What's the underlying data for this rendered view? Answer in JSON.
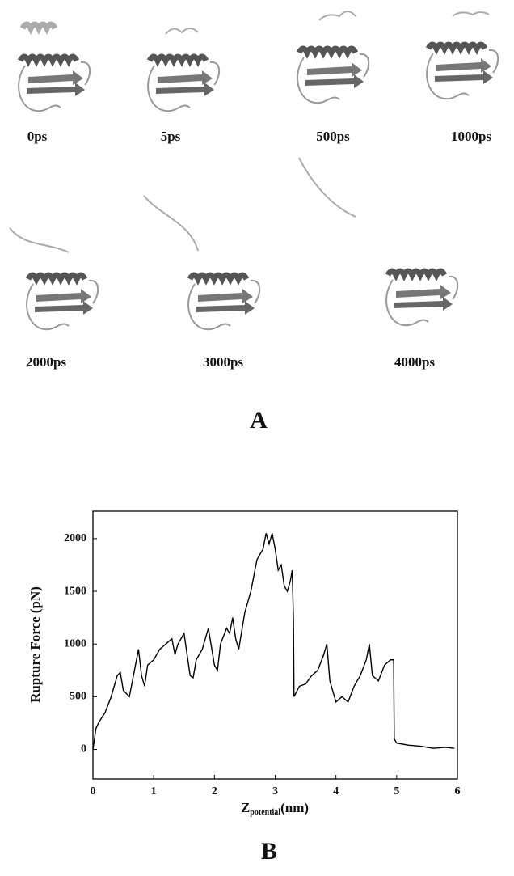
{
  "panel_a": {
    "labels": [
      "0ps",
      "5ps",
      "500ps",
      "1000ps",
      "2000ps",
      "3000ps",
      "4000ps"
    ],
    "panel_label": "A"
  },
  "panel_b": {
    "panel_label": "B"
  },
  "chart_data": {
    "type": "line",
    "y_label": "Rupture Force (pN)",
    "x_label": {
      "symbol": "Z",
      "subscript": "potential",
      "unit": "(nm)"
    },
    "xlim": [
      0,
      6
    ],
    "xticks": [
      0,
      1,
      2,
      3,
      4,
      5,
      6
    ],
    "ylim": [
      -280,
      2260
    ],
    "yticks": [
      0,
      500,
      1000,
      1500,
      2000
    ],
    "grid": false,
    "series": [
      {
        "name": null,
        "color": "#000000",
        "x": [
          0,
          0.05,
          0.1,
          0.2,
          0.3,
          0.4,
          0.45,
          0.5,
          0.6,
          0.7,
          0.75,
          0.8,
          0.85,
          0.9,
          1.0,
          1.1,
          1.2,
          1.3,
          1.35,
          1.4,
          1.5,
          1.6,
          1.65,
          1.7,
          1.8,
          1.9,
          2.0,
          2.05,
          2.1,
          2.2,
          2.25,
          2.3,
          2.35,
          2.4,
          2.5,
          2.6,
          2.7,
          2.8,
          2.85,
          2.9,
          2.95,
          3.0,
          3.05,
          3.1,
          3.15,
          3.2,
          3.25,
          3.28,
          3.3,
          3.31,
          3.4,
          3.5,
          3.6,
          3.7,
          3.8,
          3.85,
          3.9,
          4.0,
          4.1,
          4.2,
          4.3,
          4.4,
          4.5,
          4.55,
          4.6,
          4.7,
          4.8,
          4.9,
          4.95,
          4.96,
          5.0,
          5.2,
          5.4,
          5.6,
          5.8,
          5.95
        ],
        "values": [
          0,
          200,
          260,
          350,
          500,
          700,
          730,
          560,
          500,
          800,
          950,
          700,
          600,
          800,
          850,
          950,
          1000,
          1050,
          900,
          1000,
          1100,
          700,
          680,
          850,
          950,
          1150,
          800,
          750,
          1000,
          1150,
          1100,
          1250,
          1050,
          950,
          1300,
          1500,
          1800,
          1900,
          2050,
          1950,
          2050,
          1900,
          1700,
          1750,
          1550,
          1500,
          1600,
          1700,
          1250,
          500,
          600,
          620,
          700,
          750,
          900,
          1000,
          650,
          450,
          500,
          450,
          600,
          700,
          850,
          1000,
          700,
          650,
          800,
          850,
          850,
          100,
          60,
          40,
          30,
          10,
          20,
          10
        ]
      }
    ]
  }
}
